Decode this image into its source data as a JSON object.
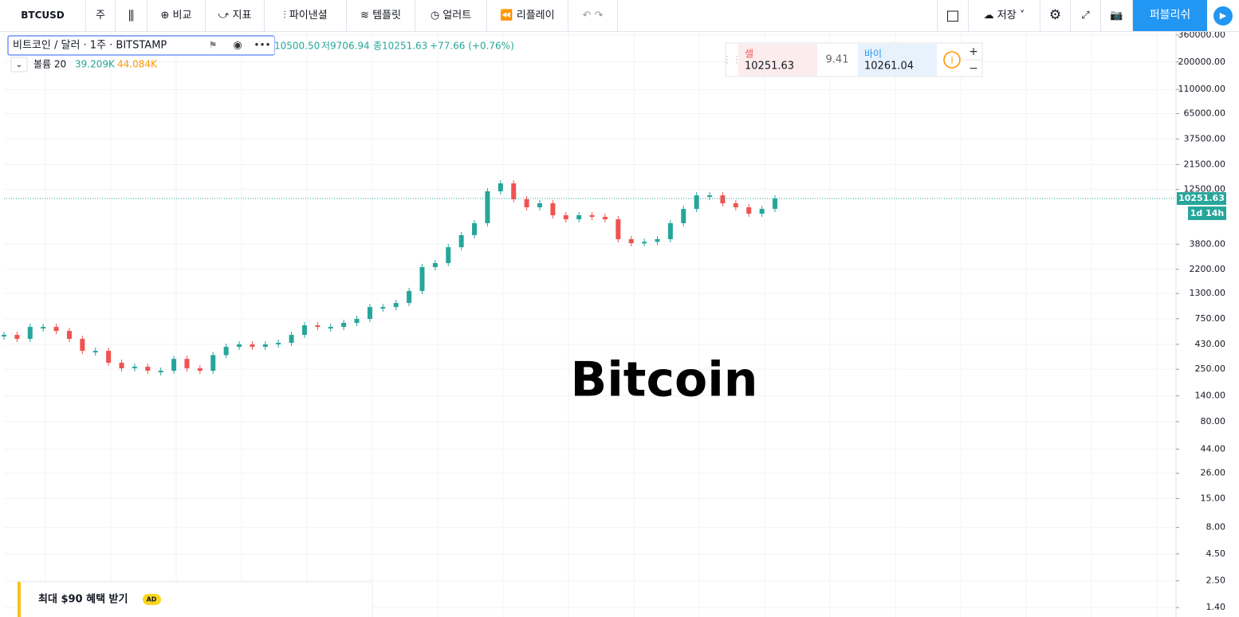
{
  "toolbar": {
    "symbol": "BTCUSD",
    "interval": "주",
    "items": [
      "비교",
      "지표",
      "파이낸셜",
      "템플릿",
      "얼러트",
      "리플레이"
    ],
    "save": "저장",
    "publish": "퍼블리쉬"
  },
  "legend": {
    "title": "비트코인 / 달러 · 1주 · BITSTAMP",
    "high": "10500.50",
    "low": "저9706.94",
    "close": "종10251.63",
    "change": "+77.66 (+0.76%)",
    "volume": "볼륨 20",
    "volume_value": "39.209K",
    "volume_ma": "44.084K"
  },
  "trade": {
    "sell_label": "셀",
    "sell_price": "10251.63",
    "spread": "9.41",
    "buy_label": "바이",
    "buy_price": "10261.04"
  },
  "ad": {
    "text": "최대 $90 혜택 받기",
    "badge": "AD"
  },
  "chart_data": {
    "type": "candlestick",
    "watermark": "Bitcoin",
    "log_scale": true,
    "grid": true,
    "up_color": "#26a69a",
    "down_color": "#ef5350",
    "categories": [
      null,
      null,
      null,
      null,
      null,
      null,
      null,
      null,
      null,
      null,
      null,
      null,
      null,
      null,
      null,
      null,
      null,
      null,
      null,
      null,
      null,
      null,
      null,
      null,
      null,
      null,
      null,
      null,
      null,
      null,
      null,
      null,
      null,
      null,
      null,
      null,
      null,
      null,
      null,
      null,
      null,
      null,
      null,
      null,
      null,
      null,
      null,
      null,
      null,
      null,
      null,
      null,
      null,
      null,
      null,
      null,
      null,
      null,
      null,
      null
    ],
    "values": [
      528,
      484,
      628,
      628,
      575,
      484,
      373,
      373,
      288,
      255,
      264,
      242,
      242,
      313,
      255,
      242,
      340,
      407,
      429,
      407,
      429,
      444,
      528,
      650,
      628,
      628,
      686,
      747,
      968,
      968,
      1057,
      1371,
      2307,
      2518,
      3556,
      4624,
      5998,
      11995,
      14256,
      10092,
      8472,
      9247,
      7129,
      6531,
      7129,
      6887,
      6531,
      4236,
      3882,
      4000,
      4236,
      5998,
      8185,
      10990,
      10990,
      9247,
      8472,
      7379,
      8185,
      10251.63
    ],
    "last_price": 10251.63,
    "countdown": "1d 14h",
    "ylim": [
      1.14,
      385000
    ],
    "yticks": [
      {
        "value": 360000,
        "label": "360000.00"
      },
      {
        "value": 200000,
        "label": "200000.00"
      },
      {
        "value": 110000,
        "label": "110000.00"
      },
      {
        "value": 65000,
        "label": "65000.00"
      },
      {
        "value": 37500,
        "label": "37500.00"
      },
      {
        "value": 21500,
        "label": "21500.00"
      },
      {
        "value": 12500,
        "label": "12500.00"
      },
      {
        "value": 3800,
        "label": "3800.00"
      },
      {
        "value": 2200,
        "label": "2200.00"
      },
      {
        "value": 1300,
        "label": "1300.00"
      },
      {
        "value": 750,
        "label": "750.00"
      },
      {
        "value": 430,
        "label": "430.00"
      },
      {
        "value": 250,
        "label": "250.00"
      },
      {
        "value": 140,
        "label": "140.00"
      },
      {
        "value": 80,
        "label": "80.00"
      },
      {
        "value": 44,
        "label": "44.00"
      },
      {
        "value": 26,
        "label": "26.00"
      },
      {
        "value": 15,
        "label": "15.00"
      },
      {
        "value": 8,
        "label": "8.00"
      },
      {
        "value": 4.5,
        "label": "4.50"
      },
      {
        "value": 2.5,
        "label": "2.50"
      },
      {
        "value": 1.4,
        "label": "1.40"
      }
    ]
  }
}
